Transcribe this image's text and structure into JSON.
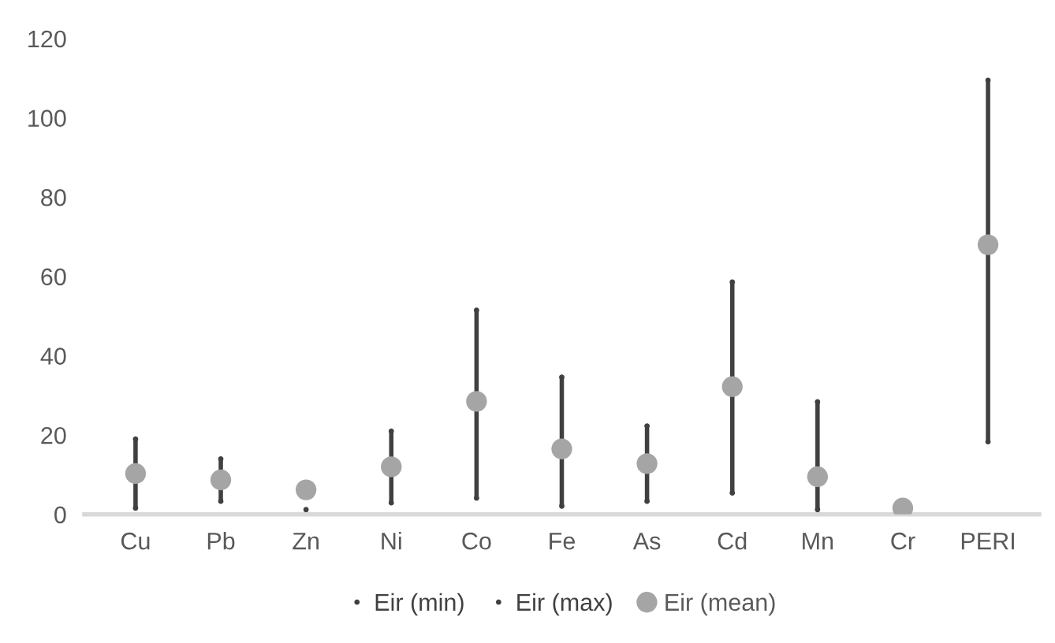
{
  "chart_data": {
    "type": "scatter",
    "marker": "circle",
    "categories": [
      "Cu",
      "Pb",
      "Zn",
      "Ni",
      "Co",
      "Fe",
      "As",
      "Cd",
      "Mn",
      "Cr",
      "PERI"
    ],
    "series": [
      {
        "name": "Eir (min)",
        "color": "#404040",
        "values": [
          1.6,
          3.3,
          1.2,
          2.9,
          4.1,
          2.1,
          3.3,
          5.4,
          1.2,
          null,
          18.3
        ]
      },
      {
        "name": "Eir (max)",
        "color": "#404040",
        "values": [
          19,
          14,
          null,
          21,
          51.5,
          34.6,
          22.3,
          58.6,
          28.4,
          null,
          109.5
        ]
      },
      {
        "name": "Eir (mean)",
        "color": "#a5a5a5",
        "values": [
          10.3,
          8.7,
          6.2,
          12,
          28.5,
          16.5,
          12.8,
          32.2,
          9.5,
          1.6,
          68
        ]
      }
    ],
    "ylim": [
      0,
      120
    ],
    "yticks": [
      0,
      20,
      40,
      60,
      80,
      100,
      120
    ],
    "legend": "bottom"
  }
}
